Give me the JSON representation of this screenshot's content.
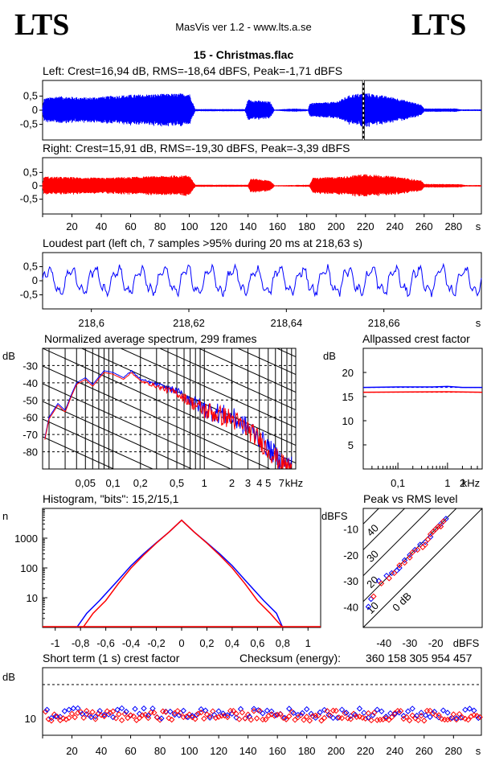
{
  "header": {
    "logo_left": "LTS",
    "logo_right": "LTS",
    "app_title": "MasVis ver 1.2 - www.lts.a.se",
    "file_title": "15 - Christmas.flac"
  },
  "colors": {
    "left": "#0000ff",
    "right": "#ff0000",
    "axis": "#000000"
  },
  "chart_data": [
    {
      "id": "left-waveform",
      "type": "area",
      "title": "Left: Crest=16,94 dB, RMS=-18,64 dBFS, Peak=-1,71 dBFS",
      "y_ticks": [
        "0,5",
        "0",
        "-0,5"
      ],
      "ylim": [
        -1,
        1
      ],
      "x_range_s": [
        0,
        299
      ],
      "loudest_marker_s": 218.63,
      "envelope": [
        {
          "t": 0,
          "a": 0.1
        },
        {
          "t": 1,
          "a": 0.42
        },
        {
          "t": 10,
          "a": 0.5
        },
        {
          "t": 30,
          "a": 0.45
        },
        {
          "t": 60,
          "a": 0.55
        },
        {
          "t": 100,
          "a": 0.6
        },
        {
          "t": 104,
          "a": 0.04
        },
        {
          "t": 138,
          "a": 0.04
        },
        {
          "t": 140,
          "a": 0.38
        },
        {
          "t": 155,
          "a": 0.3
        },
        {
          "t": 158,
          "a": 0.02
        },
        {
          "t": 168,
          "a": 0.05
        },
        {
          "t": 172,
          "a": 0.06
        },
        {
          "t": 181,
          "a": 0.03
        },
        {
          "t": 182,
          "a": 0.25
        },
        {
          "t": 200,
          "a": 0.3
        },
        {
          "t": 210,
          "a": 0.55
        },
        {
          "t": 220,
          "a": 0.62
        },
        {
          "t": 240,
          "a": 0.45
        },
        {
          "t": 258,
          "a": 0.2
        },
        {
          "t": 260,
          "a": 0.06
        },
        {
          "t": 282,
          "a": 0.06
        },
        {
          "t": 285,
          "a": 0.03
        },
        {
          "t": 299,
          "a": 0.03
        }
      ]
    },
    {
      "id": "right-waveform",
      "type": "area",
      "title": "Right: Crest=15,91 dB, RMS=-19,30 dBFS, Peak=-3,39 dBFS",
      "y_ticks": [
        "0,5",
        "0",
        "-0,5"
      ],
      "ylim": [
        -1,
        1
      ],
      "x_ticks": [
        "20",
        "40",
        "60",
        "80",
        "100",
        "120",
        "140",
        "160",
        "180",
        "200",
        "220",
        "240",
        "260",
        "280"
      ],
      "x_unit": "s",
      "x_range_s": [
        0,
        299
      ],
      "envelope": [
        {
          "t": 0,
          "a": 0.1
        },
        {
          "t": 1,
          "a": 0.35
        },
        {
          "t": 40,
          "a": 0.3
        },
        {
          "t": 100,
          "a": 0.4
        },
        {
          "t": 104,
          "a": 0.04
        },
        {
          "t": 140,
          "a": 0.04
        },
        {
          "t": 142,
          "a": 0.28
        },
        {
          "t": 155,
          "a": 0.2
        },
        {
          "t": 158,
          "a": 0.02
        },
        {
          "t": 182,
          "a": 0.04
        },
        {
          "t": 184,
          "a": 0.3
        },
        {
          "t": 205,
          "a": 0.35
        },
        {
          "t": 220,
          "a": 0.45
        },
        {
          "t": 245,
          "a": 0.32
        },
        {
          "t": 258,
          "a": 0.2
        },
        {
          "t": 260,
          "a": 0.07
        },
        {
          "t": 285,
          "a": 0.06
        },
        {
          "t": 288,
          "a": 0.03
        },
        {
          "t": 299,
          "a": 0.03
        }
      ]
    },
    {
      "id": "loudest-part",
      "type": "line",
      "title": "Loudest part (left  ch, 7 samples >95% during 20 ms at 218,63 s)",
      "y_ticks": [
        "0,5",
        "0",
        "-0,5"
      ],
      "ylim": [
        -1,
        1
      ],
      "x_ticks": [
        "218,6",
        "218,62",
        "218,64",
        "218,66"
      ],
      "x_unit": "s",
      "xlim": [
        218.59,
        218.68
      ]
    },
    {
      "id": "spectrum",
      "type": "line",
      "title": "Normalized average spectrum, 299 frames",
      "ylabel": "dB",
      "y_ticks": [
        "-30",
        "-40",
        "-50",
        "-60",
        "-70",
        "-80"
      ],
      "ylim": [
        -90,
        -20
      ],
      "x_ticks": [
        "0,05",
        "0,1",
        "0,2",
        "0,5",
        "1",
        "2",
        "3",
        "4",
        "5",
        "7"
      ],
      "x_unit": "kHz",
      "xlim_khz": [
        0.017,
        10
      ],
      "series": [
        {
          "values": [
            {
              "f": 0.018,
              "db": -72
            },
            {
              "f": 0.02,
              "db": -60
            },
            {
              "f": 0.025,
              "db": -52
            },
            {
              "f": 0.03,
              "db": -56
            },
            {
              "f": 0.035,
              "db": -47
            },
            {
              "f": 0.04,
              "db": -40
            },
            {
              "f": 0.05,
              "db": -37
            },
            {
              "f": 0.06,
              "db": -41
            },
            {
              "f": 0.08,
              "db": -33
            },
            {
              "f": 0.1,
              "db": -34
            },
            {
              "f": 0.13,
              "db": -37
            },
            {
              "f": 0.16,
              "db": -33
            },
            {
              "f": 0.2,
              "db": -38
            },
            {
              "f": 0.3,
              "db": -41
            },
            {
              "f": 0.5,
              "db": -45
            },
            {
              "f": 0.7,
              "db": -50
            },
            {
              "f": 1,
              "db": -55
            },
            {
              "f": 1.5,
              "db": -58
            },
            {
              "f": 2,
              "db": -60
            },
            {
              "f": 3,
              "db": -66
            },
            {
              "f": 4,
              "db": -72
            },
            {
              "f": 5,
              "db": -78
            },
            {
              "f": 6,
              "db": -82
            },
            {
              "f": 7,
              "db": -86
            },
            {
              "f": 9,
              "db": -88
            }
          ]
        },
        {
          "values": [
            {
              "f": 0.018,
              "db": -73
            },
            {
              "f": 0.02,
              "db": -61
            },
            {
              "f": 0.025,
              "db": -53
            },
            {
              "f": 0.03,
              "db": -57
            },
            {
              "f": 0.035,
              "db": -48
            },
            {
              "f": 0.04,
              "db": -41
            },
            {
              "f": 0.05,
              "db": -38
            },
            {
              "f": 0.06,
              "db": -42
            },
            {
              "f": 0.08,
              "db": -34
            },
            {
              "f": 0.1,
              "db": -35
            },
            {
              "f": 0.13,
              "db": -38
            },
            {
              "f": 0.16,
              "db": -34
            },
            {
              "f": 0.2,
              "db": -39
            },
            {
              "f": 0.3,
              "db": -42
            },
            {
              "f": 0.5,
              "db": -46
            },
            {
              "f": 0.7,
              "db": -51
            },
            {
              "f": 1,
              "db": -56
            },
            {
              "f": 1.5,
              "db": -59
            },
            {
              "f": 2,
              "db": -61
            },
            {
              "f": 3,
              "db": -67
            },
            {
              "f": 4,
              "db": -73
            },
            {
              "f": 5,
              "db": -79
            },
            {
              "f": 6,
              "db": -83
            },
            {
              "f": 7,
              "db": -87
            },
            {
              "f": 9,
              "db": -89
            }
          ]
        }
      ]
    },
    {
      "id": "allpassed-crest",
      "type": "line",
      "title": "Allpassed crest factor",
      "ylabel": "dB",
      "y_ticks": [
        "20",
        "15",
        "10",
        "5"
      ],
      "ylim": [
        0,
        25
      ],
      "x_ticks": [
        "0,1",
        "1",
        "2"
      ],
      "x_unit": "kHz",
      "xlim_khz": [
        0.02,
        5
      ],
      "series": [
        {
          "dashed": false,
          "values": [
            {
              "f": 0.02,
              "db": 16.9
            },
            {
              "f": 0.1,
              "db": 17.0
            },
            {
              "f": 0.5,
              "db": 17.0
            },
            {
              "f": 1,
              "db": 17.1
            },
            {
              "f": 2,
              "db": 16.9
            },
            {
              "f": 5,
              "db": 16.9
            }
          ]
        },
        {
          "dashed": true,
          "values": [
            {
              "f": 0.02,
              "db": 16.9
            },
            {
              "f": 5,
              "db": 16.9
            }
          ]
        },
        {
          "dashed": false,
          "values": [
            {
              "f": 0.02,
              "db": 15.9
            },
            {
              "f": 1,
              "db": 16.0
            },
            {
              "f": 5,
              "db": 15.9
            }
          ]
        },
        {
          "dashed": true,
          "values": [
            {
              "f": 0.02,
              "db": 15.9
            },
            {
              "f": 5,
              "db": 15.9
            }
          ]
        }
      ]
    },
    {
      "id": "histogram",
      "type": "line",
      "title": "Histogram, \"bits\": 15,2/15,1",
      "ylabel": "n",
      "y_ticks": [
        "1000",
        "100",
        "10"
      ],
      "ylim_log10": [
        0,
        4
      ],
      "x_ticks": [
        "-1",
        "-0,8",
        "-0,6",
        "-0,4",
        "-0,2",
        "0",
        "0,2",
        "0,4",
        "0,6",
        "0,8",
        "1"
      ],
      "xlim": [
        -1.1,
        1.1
      ],
      "series": [
        {
          "values": [
            {
              "x": -0.83,
              "n": 1
            },
            {
              "x": -0.75,
              "n": 3
            },
            {
              "x": -0.65,
              "n": 8
            },
            {
              "x": -0.5,
              "n": 40
            },
            {
              "x": -0.4,
              "n": 120
            },
            {
              "x": -0.3,
              "n": 300
            },
            {
              "x": -0.2,
              "n": 700
            },
            {
              "x": -0.1,
              "n": 1600
            },
            {
              "x": 0,
              "n": 4000
            },
            {
              "x": 0.1,
              "n": 1600
            },
            {
              "x": 0.2,
              "n": 700
            },
            {
              "x": 0.3,
              "n": 300
            },
            {
              "x": 0.4,
              "n": 120
            },
            {
              "x": 0.5,
              "n": 40
            },
            {
              "x": 0.65,
              "n": 8
            },
            {
              "x": 0.75,
              "n": 3
            },
            {
              "x": 0.8,
              "n": 1
            }
          ]
        },
        {
          "values": [
            {
              "x": -0.78,
              "n": 1
            },
            {
              "x": -0.7,
              "n": 3
            },
            {
              "x": -0.6,
              "n": 8
            },
            {
              "x": -0.5,
              "n": 30
            },
            {
              "x": -0.4,
              "n": 100
            },
            {
              "x": -0.3,
              "n": 270
            },
            {
              "x": -0.2,
              "n": 680
            },
            {
              "x": -0.1,
              "n": 1600
            },
            {
              "x": 0,
              "n": 4000
            },
            {
              "x": 0.1,
              "n": 1600
            },
            {
              "x": 0.2,
              "n": 680
            },
            {
              "x": 0.3,
              "n": 270
            },
            {
              "x": 0.4,
              "n": 100
            },
            {
              "x": 0.5,
              "n": 30
            },
            {
              "x": 0.6,
              "n": 8
            },
            {
              "x": 0.7,
              "n": 3
            },
            {
              "x": 0.8,
              "n": 1
            }
          ]
        }
      ]
    },
    {
      "id": "peak-vs-rms",
      "type": "scatter",
      "title": "Peak vs RMS level",
      "ylabel": "dBFS",
      "y_ticks": [
        "-10",
        "-20",
        "-30",
        "-40"
      ],
      "ylim": [
        -48,
        -2
      ],
      "x_ticks": [
        "-40",
        "-30",
        "-20"
      ],
      "x_unit": "dBFS",
      "xlim": [
        -48,
        -2
      ],
      "crest_labels": [
        "40",
        "30",
        "20",
        "10",
        "0 dB"
      ],
      "left_points": [
        [
          -46,
          -40
        ],
        [
          -45,
          -37
        ],
        [
          -42,
          -30
        ],
        [
          -39,
          -28
        ],
        [
          -37,
          -27
        ],
        [
          -35,
          -26
        ],
        [
          -34,
          -25
        ],
        [
          -32,
          -22
        ],
        [
          -30,
          -20
        ],
        [
          -28,
          -18
        ],
        [
          -26,
          -16
        ],
        [
          -24,
          -15
        ],
        [
          -22,
          -13
        ],
        [
          -21,
          -11
        ],
        [
          -20,
          -10
        ],
        [
          -19,
          -9
        ],
        [
          -18,
          -8
        ],
        [
          -17,
          -7
        ],
        [
          -16,
          -6
        ]
      ],
      "right_points": [
        [
          -44,
          -36
        ],
        [
          -41,
          -31
        ],
        [
          -38,
          -29
        ],
        [
          -36,
          -27
        ],
        [
          -34,
          -24
        ],
        [
          -32,
          -23
        ],
        [
          -30,
          -21
        ],
        [
          -29,
          -19
        ],
        [
          -27,
          -18
        ],
        [
          -25,
          -17
        ],
        [
          -24,
          -16
        ],
        [
          -23,
          -14
        ],
        [
          -22,
          -12
        ],
        [
          -21,
          -11
        ],
        [
          -20,
          -10
        ],
        [
          -19,
          -9
        ],
        [
          -18,
          -9
        ],
        [
          -17,
          -7
        ]
      ]
    },
    {
      "id": "short-term-crest",
      "type": "scatter",
      "title": "Short term (1 s) crest factor",
      "checksum_label": "Checksum (energy):",
      "checksum_value": "360 158 305 954 457",
      "ylabel": "dB",
      "y_ticks": [
        "10"
      ],
      "ylim": [
        5,
        25
      ],
      "x_ticks": [
        "20",
        "40",
        "60",
        "80",
        "100",
        "120",
        "140",
        "160",
        "180",
        "200",
        "220",
        "240",
        "260",
        "280"
      ],
      "x_unit": "s",
      "x_range_s": [
        0,
        299
      ],
      "threshold_db": 20,
      "left_mean_db": 11.5,
      "right_mean_db": 10.8
    }
  ]
}
